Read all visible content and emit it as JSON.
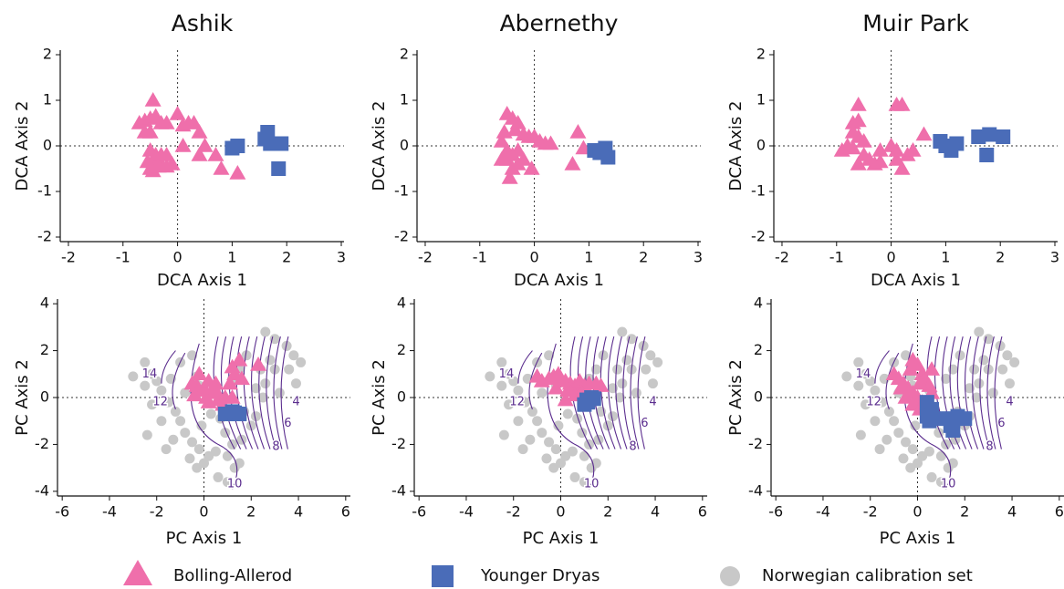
{
  "chart_data": [
    {
      "type": "scatter",
      "title": "Ashik",
      "xlabel": "DCA Axis 1",
      "ylabel": "DCA Axis 2",
      "xlim": [
        -2.15,
        3.05
      ],
      "ylim": [
        -2.1,
        2.1
      ],
      "xticks": [
        -2,
        -1,
        0,
        1,
        2,
        3
      ],
      "yticks": [
        -2,
        -1,
        0,
        1,
        2
      ],
      "series": [
        {
          "name": "Bolling-Allerod",
          "color": "#ef6fab",
          "marker": "triangle",
          "x": [
            -0.7,
            -0.6,
            -0.5,
            -0.45,
            -0.4,
            -0.3,
            -0.6,
            -0.5,
            -0.2,
            0,
            0.1,
            0.2,
            0.3,
            0.4,
            0.5,
            -0.5,
            -0.4,
            -0.3,
            -0.5,
            -0.4,
            -0.2,
            -0.1,
            -0.3,
            0.4,
            0.7,
            0.8,
            1.1,
            -0.55,
            -0.45,
            -0.35,
            -0.2,
            0.1
          ],
          "values": [
            0.5,
            0.55,
            0.6,
            1.0,
            0.65,
            0.5,
            0.3,
            0.3,
            0.5,
            0.7,
            0.45,
            0.5,
            0.5,
            0.3,
            0,
            -0.1,
            -0.2,
            -0.4,
            -0.5,
            -0.35,
            -0.45,
            -0.4,
            -0.2,
            -0.2,
            -0.2,
            -0.5,
            -0.6,
            -0.35,
            -0.55,
            -0.45,
            -0.2,
            0.0
          ]
        },
        {
          "name": "Younger Dryas",
          "color": "#4a6cb8",
          "marker": "square",
          "x": [
            1.0,
            1.1,
            1.6,
            1.65,
            1.7,
            1.9,
            1.85
          ],
          "values": [
            -0.05,
            0.0,
            0.15,
            0.3,
            0.05,
            0.05,
            -0.5
          ]
        }
      ]
    },
    {
      "type": "scatter",
      "title": "Abernethy",
      "xlabel": "DCA Axis 1",
      "ylabel": "DCA Axis 2",
      "xlim": [
        -2.15,
        3.05
      ],
      "ylim": [
        -2.1,
        2.1
      ],
      "xticks": [
        -2,
        -1,
        0,
        1,
        2,
        3
      ],
      "yticks": [
        -2,
        -1,
        0,
        1,
        2
      ],
      "series": [
        {
          "name": "Bolling-Allerod",
          "color": "#ef6fab",
          "marker": "triangle",
          "x": [
            -0.6,
            -0.5,
            -0.4,
            -0.3,
            -0.35,
            -0.2,
            -0.1,
            0,
            0.1,
            0.3,
            0.8,
            -0.5,
            -0.5,
            -0.4,
            -0.45,
            -0.3,
            -0.2,
            -0.4,
            -0.3,
            -0.6,
            0.7,
            -0.05,
            0.2,
            -0.55,
            0.9
          ],
          "values": [
            0.1,
            0.7,
            0.6,
            0.5,
            0.35,
            0.25,
            0.2,
            0.2,
            0.1,
            0.05,
            0.3,
            -0.1,
            -0.3,
            -0.5,
            -0.7,
            -0.1,
            -0.3,
            -0.2,
            -0.4,
            -0.3,
            -0.4,
            -0.5,
            0.05,
            0.3,
            -0.05
          ]
        },
        {
          "name": "Younger Dryas",
          "color": "#4a6cb8",
          "marker": "square",
          "x": [
            1.1,
            1.2,
            1.3,
            1.35,
            1.2
          ],
          "values": [
            -0.1,
            -0.15,
            -0.05,
            -0.25,
            -0.1
          ]
        }
      ]
    },
    {
      "type": "scatter",
      "title": "Muir Park",
      "xlabel": "DCA Axis 1",
      "ylabel": "DCA Axis 2",
      "xlim": [
        -2.15,
        3.05
      ],
      "ylim": [
        -2.1,
        2.1
      ],
      "xticks": [
        -2,
        -1,
        0,
        1,
        2,
        3
      ],
      "yticks": [
        -2,
        -1,
        0,
        1,
        2
      ],
      "series": [
        {
          "name": "Bolling-Allerod",
          "color": "#ef6fab",
          "marker": "triangle",
          "x": [
            -0.6,
            -0.7,
            -0.6,
            -0.7,
            -0.6,
            -0.5,
            -0.8,
            -0.9,
            -0.7,
            -0.5,
            -0.4,
            -0.6,
            -0.3,
            -0.2,
            0.1,
            0.2,
            0.1,
            0.2,
            0.3,
            0.4,
            0.6,
            -0.2,
            0,
            0.1
          ],
          "values": [
            0.9,
            0.5,
            0.55,
            0.3,
            0.2,
            0.1,
            0,
            -0.1,
            -0.05,
            -0.2,
            -0.3,
            -0.4,
            -0.4,
            -0.35,
            0.9,
            0.9,
            -0.3,
            -0.5,
            -0.2,
            -0.1,
            0.25,
            -0.1,
            0,
            -0.1
          ]
        },
        {
          "name": "Younger Dryas",
          "color": "#4a6cb8",
          "marker": "square",
          "x": [
            0.9,
            1.0,
            1.1,
            1.2,
            1.6,
            1.8,
            2.05,
            1.75
          ],
          "values": [
            0.1,
            0,
            -0.1,
            0.05,
            0.2,
            0.25,
            0.2,
            -0.2
          ]
        }
      ]
    },
    {
      "type": "scatter",
      "xlabel": "PC Axis 1",
      "ylabel": "PC Axis 2",
      "xlim": [
        -6.2,
        6.2
      ],
      "ylim": [
        -4.2,
        4.2
      ],
      "xticks": [
        -6,
        -4,
        -2,
        0,
        2,
        4,
        6
      ],
      "yticks": [
        -4,
        -2,
        0,
        2,
        4
      ],
      "contour_labels": [
        14,
        12,
        10,
        8,
        6,
        4
      ],
      "series": [
        {
          "name": "Bolling-Allerod",
          "color": "#ef6fab",
          "marker": "triangle",
          "x": [
            -0.5,
            -0.3,
            -0.2,
            0,
            0.1,
            0.3,
            0.5,
            0.6,
            0.9,
            1.2,
            -0.4,
            0.2,
            0.5,
            1.3,
            1.2,
            1.5,
            2.3,
            1.1,
            0.8,
            0.2,
            -0.2,
            1.6
          ],
          "values": [
            0.6,
            0.5,
            0.3,
            0.4,
            0,
            0.2,
            0.3,
            -0.1,
            0,
            0,
            0.1,
            0.7,
            0.6,
            1.0,
            1.3,
            1.6,
            1.4,
            0.6,
            -0.3,
            -0.2,
            1.0,
            0.8
          ]
        },
        {
          "name": "Younger Dryas",
          "color": "#4a6cb8",
          "marker": "square",
          "x": [
            0.9,
            1.1,
            1.3,
            1.5,
            1.2
          ],
          "values": [
            -0.7,
            -0.7,
            -0.65,
            -0.7,
            -0.6
          ]
        },
        {
          "name": "Norwegian calibration set",
          "color": "#c8c8c8",
          "marker": "circle",
          "x": [
            -2.5,
            -2.2,
            -2,
            -1.8,
            -1.5,
            -1.2,
            -1,
            -0.8,
            -1.3,
            -0.5,
            -0.2,
            0.2,
            0.5,
            -0.3,
            0.0,
            1,
            1.3,
            1.5,
            1.2,
            0.9,
            1.6,
            2,
            1.7,
            2.2,
            2.5,
            2.2,
            2.6,
            3,
            2.8,
            3.5,
            3.8,
            3.6,
            3.9,
            2.6,
            3,
            2.4,
            1.8,
            -0.5,
            -1,
            -0.2,
            -0.8,
            -2.5,
            -2.2,
            -1.8,
            -2.4,
            -1.6,
            -0.6,
            1.0,
            0.6,
            -0.3,
            0.5,
            1.2,
            1.5,
            0.3,
            -0.1,
            0.7,
            4.1,
            3.2,
            -1.4,
            -3
          ],
          "values": [
            1.5,
            1.0,
            0.7,
            0.3,
            -0.2,
            -0.6,
            -1,
            -1.5,
            -1.8,
            -1.9,
            -2.2,
            -2.5,
            -2.3,
            -3,
            -2.8,
            -2.5,
            -3,
            -2.8,
            -2,
            -1.5,
            -1.8,
            -1.2,
            -0.6,
            -0.8,
            0,
            0.4,
            0.6,
            1.2,
            1.6,
            2.2,
            1.8,
            1.2,
            0.6,
            2.8,
            2.5,
            1.2,
            1.8,
            1.8,
            1.5,
            0.5,
            0.2,
            0.5,
            -0.3,
            -1,
            -1.6,
            -2.2,
            -2.6,
            -3.6,
            -3.4,
            0.9,
            0.3,
            0.8,
            1.2,
            -0.7,
            -1.2,
            -0.9,
            1.5,
            0.2,
            0.8,
            0.9
          ]
        }
      ]
    },
    {
      "type": "scatter",
      "xlabel": "PC Axis 1",
      "ylabel": "PC Axis 2",
      "xlim": [
        -6.2,
        6.2
      ],
      "ylim": [
        -4.2,
        4.2
      ],
      "xticks": [
        -6,
        -4,
        -2,
        0,
        2,
        4,
        6
      ],
      "yticks": [
        -4,
        -2,
        0,
        2,
        4
      ],
      "contour_labels": [
        14,
        12,
        10,
        8,
        6,
        4
      ],
      "series": [
        {
          "name": "Bolling-Allerod",
          "color": "#ef6fab",
          "marker": "triangle",
          "x": [
            -1,
            -0.8,
            -0.5,
            -0.3,
            -0.1,
            0,
            0.2,
            0.4,
            0.6,
            0.8,
            1.0,
            1.2,
            1.5,
            1.7,
            0.2,
            0.3,
            -0.2,
            0.6,
            0.9
          ],
          "values": [
            0.9,
            0.7,
            0.8,
            0.9,
            1.0,
            0.8,
            0.7,
            0.6,
            0.5,
            0.7,
            0.5,
            0.6,
            0.6,
            0.5,
            -0.1,
            0.3,
            0.4,
            0.1,
            0.2
          ]
        },
        {
          "name": "Younger Dryas",
          "color": "#4a6cb8",
          "marker": "square",
          "x": [
            1.0,
            1.1,
            1.3,
            1.4,
            1.15
          ],
          "values": [
            -0.3,
            -0.1,
            0,
            -0.05,
            -0.2
          ]
        },
        {
          "name": "Norwegian calibration set",
          "color": "#c8c8c8",
          "marker": "circle",
          "x": [
            -2.5,
            -2.2,
            -2,
            -1.8,
            -1.5,
            -1.2,
            -1,
            -0.8,
            -1.3,
            -0.5,
            -0.2,
            0.2,
            0.5,
            -0.3,
            0.0,
            1,
            1.3,
            1.5,
            1.2,
            0.9,
            1.6,
            2,
            1.7,
            2.2,
            2.5,
            2.2,
            2.6,
            3,
            2.8,
            3.5,
            3.8,
            3.6,
            3.9,
            2.6,
            3,
            2.4,
            1.8,
            -0.5,
            -1,
            -0.2,
            -0.8,
            -2.5,
            -2.2,
            -1.8,
            -2.4,
            -1.6,
            -0.6,
            1.0,
            0.6,
            -0.3,
            0.5,
            1.2,
            1.5,
            0.3,
            -0.1,
            0.7,
            4.1,
            3.2,
            -1.4,
            -3
          ],
          "values": [
            1.5,
            1.0,
            0.7,
            0.3,
            -0.2,
            -0.6,
            -1,
            -1.5,
            -1.8,
            -1.9,
            -2.2,
            -2.5,
            -2.3,
            -3,
            -2.8,
            -2.5,
            -3,
            -2.8,
            -2,
            -1.5,
            -1.8,
            -1.2,
            -0.6,
            -0.8,
            0,
            0.4,
            0.6,
            1.2,
            1.6,
            2.2,
            1.8,
            1.2,
            0.6,
            2.8,
            2.5,
            1.2,
            1.8,
            1.8,
            1.5,
            0.5,
            0.2,
            0.5,
            -0.3,
            -1,
            -1.6,
            -2.2,
            -2.6,
            -3.6,
            -3.4,
            0.9,
            0.3,
            0.8,
            1.2,
            -0.7,
            -1.2,
            -0.9,
            1.5,
            0.2,
            0.8,
            0.9
          ]
        }
      ]
    },
    {
      "type": "scatter",
      "xlabel": "PC Axis 1",
      "ylabel": "PC Axis 2",
      "xlim": [
        -6.2,
        6.2
      ],
      "ylim": [
        -4.2,
        4.2
      ],
      "xticks": [
        -6,
        -4,
        -2,
        0,
        2,
        4,
        6
      ],
      "yticks": [
        -4,
        -2,
        0,
        2,
        4
      ],
      "contour_labels": [
        14,
        12,
        10,
        8,
        6,
        4
      ],
      "series": [
        {
          "name": "Bolling-Allerod",
          "color": "#ef6fab",
          "marker": "triangle",
          "x": [
            -1.0,
            -0.8,
            -0.6,
            -0.4,
            -0.2,
            0,
            0.2,
            -0.3,
            -0.2,
            0,
            0.2,
            0.3,
            0.5,
            -0.5,
            -0.2,
            0.1,
            0.4,
            0.6,
            -0.7,
            0.1,
            0.6
          ],
          "values": [
            1.0,
            0.8,
            0.6,
            0.4,
            0.2,
            0,
            -0.2,
            1.2,
            1.6,
            1.4,
            1.0,
            0.8,
            0.5,
            0.0,
            -0.3,
            -0.5,
            -0.2,
            0.2,
            0.4,
            0.6,
            1.2
          ]
        },
        {
          "name": "Younger Dryas",
          "color": "#4a6cb8",
          "marker": "square",
          "x": [
            0.4,
            0.6,
            0.4,
            0.9,
            0.5,
            1.4,
            1.5,
            1.7,
            2.0,
            1.5
          ],
          "values": [
            -0.2,
            -0.5,
            -0.8,
            -0.9,
            -1.0,
            -1.2,
            -0.9,
            -0.8,
            -0.9,
            -1.4
          ]
        },
        {
          "name": "Norwegian calibration set",
          "color": "#c8c8c8",
          "marker": "circle",
          "x": [
            -2.5,
            -2.2,
            -2,
            -1.8,
            -1.5,
            -1.2,
            -1,
            -0.8,
            -1.3,
            -0.5,
            -0.2,
            0.2,
            0.5,
            -0.3,
            0.0,
            1,
            1.3,
            1.5,
            1.2,
            0.9,
            1.6,
            2,
            1.7,
            2.2,
            2.5,
            2.2,
            2.6,
            3,
            2.8,
            3.5,
            3.8,
            3.6,
            3.9,
            2.6,
            3,
            2.4,
            1.8,
            -0.5,
            -1,
            -0.2,
            -0.8,
            -2.5,
            -2.2,
            -1.8,
            -2.4,
            -1.6,
            -0.6,
            1.0,
            0.6,
            -0.3,
            0.5,
            1.2,
            1.5,
            0.3,
            -0.1,
            0.7,
            4.1,
            3.2,
            -1.4,
            -3
          ],
          "values": [
            1.5,
            1.0,
            0.7,
            0.3,
            -0.2,
            -0.6,
            -1,
            -1.5,
            -1.8,
            -1.9,
            -2.2,
            -2.5,
            -2.3,
            -3,
            -2.8,
            -2.5,
            -3,
            -2.8,
            -2,
            -1.5,
            -1.8,
            -1.2,
            -0.6,
            -0.8,
            0,
            0.4,
            0.6,
            1.2,
            1.6,
            2.2,
            1.8,
            1.2,
            0.6,
            2.8,
            2.5,
            1.2,
            1.8,
            1.8,
            1.5,
            0.5,
            0.2,
            0.5,
            -0.3,
            -1,
            -1.6,
            -2.2,
            -2.6,
            -3.6,
            -3.4,
            0.9,
            0.3,
            0.8,
            1.2,
            -0.7,
            -1.2,
            -0.9,
            1.5,
            0.2,
            0.8,
            0.9
          ]
        }
      ]
    }
  ]
}
